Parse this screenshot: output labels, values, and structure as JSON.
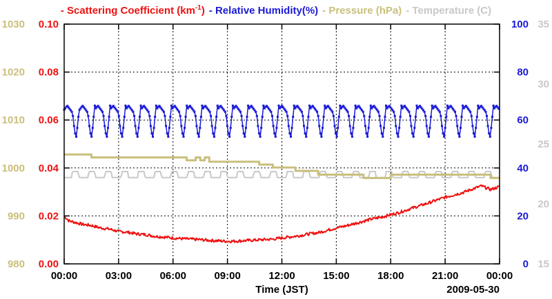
{
  "chart_data": {
    "type": "line",
    "title": "",
    "xlabel": "Time (JST)",
    "date_label": "2009-05-30",
    "x_ticks": [
      "00:00",
      "03:00",
      "06:00",
      "09:00",
      "12:00",
      "15:00",
      "18:00",
      "21:00",
      "00:00"
    ],
    "xlim": [
      0,
      24
    ],
    "legend": [
      {
        "dash": "-",
        "text": "Scattering Coefficient (km",
        "sup": "-1",
        "close": ")",
        "color": "#ee1111"
      },
      {
        "dash": "-",
        "text": "Relative Humidity(%)",
        "sup": "",
        "close": "",
        "color": "#1a1ad6"
      },
      {
        "dash": "-",
        "text": "Pressure (hPa)",
        "sup": "",
        "close": "",
        "color": "#c9bf7c"
      },
      {
        "dash": "-",
        "text": "Temperature (",
        "sup": "",
        "close": "C)",
        "color": "#c8c8c8"
      }
    ],
    "axes": {
      "left_outer": {
        "label": "Pressure (hPa)",
        "range": [
          980,
          1030
        ],
        "ticks": [
          "980",
          "990",
          "1000",
          "1010",
          "1020",
          "1030"
        ],
        "color": "#c9bf7c"
      },
      "left_inner": {
        "label": "Scattering Coefficient (km-1)",
        "range": [
          0,
          0.1
        ],
        "ticks": [
          "0.00",
          "0.02",
          "0.04",
          "0.06",
          "0.08",
          "0.10"
        ],
        "color": "#ee1111"
      },
      "right_inner": {
        "label": "Relative Humidity(%)",
        "range": [
          0,
          100
        ],
        "ticks": [
          "0",
          "20",
          "40",
          "60",
          "80",
          "100"
        ],
        "color": "#1a1ad6"
      },
      "right_outer": {
        "label": "Temperature (C)",
        "range": [
          15,
          35
        ],
        "ticks": [
          "15",
          "20",
          "25",
          "30",
          "35"
        ],
        "color": "#c8c8c8"
      }
    },
    "series": [
      {
        "name": "Scattering Coefficient",
        "axis": "left_inner",
        "color": "#ee1111",
        "x": [
          0,
          0.25,
          0.5,
          1,
          1.5,
          2,
          2.5,
          3,
          3.5,
          4,
          4.5,
          5,
          5.5,
          6,
          6.5,
          7,
          7.5,
          8,
          8.5,
          9,
          9.5,
          10,
          10.5,
          11,
          11.5,
          12,
          12.5,
          13,
          13.5,
          14,
          14.5,
          15,
          15.5,
          16,
          16.5,
          17,
          17.5,
          18,
          18.5,
          19,
          19.5,
          20,
          20.5,
          21,
          21.5,
          22,
          22.5,
          23,
          23.5,
          24
        ],
        "values": [
          0.02,
          0.018,
          0.0175,
          0.0165,
          0.016,
          0.015,
          0.0145,
          0.0135,
          0.0132,
          0.0125,
          0.0122,
          0.0115,
          0.0112,
          0.0108,
          0.0105,
          0.0103,
          0.0101,
          0.0098,
          0.0096,
          0.0094,
          0.0095,
          0.0097,
          0.0099,
          0.0101,
          0.0103,
          0.0108,
          0.0113,
          0.0118,
          0.0125,
          0.013,
          0.014,
          0.015,
          0.0158,
          0.0168,
          0.0178,
          0.0188,
          0.0195,
          0.0205,
          0.0215,
          0.0228,
          0.024,
          0.0252,
          0.0265,
          0.0278,
          0.0288,
          0.0298,
          0.0312,
          0.0325,
          0.031,
          0.0322
        ]
      },
      {
        "name": "Relative Humidity",
        "axis": "right_inner",
        "color": "#1a1ad6",
        "period_hours": 0.845,
        "high": 66,
        "low": 53,
        "x_start": 0,
        "x_end": 24
      },
      {
        "name": "Pressure",
        "axis": "left_outer",
        "color": "#c9bf7c",
        "x": [
          0,
          1.5,
          1.5,
          6.75,
          6.75,
          7.25,
          7.25,
          7.5,
          7.5,
          7.75,
          7.75,
          8.0,
          8.0,
          10.75,
          10.75,
          11.5,
          11.5,
          12.75,
          12.75,
          14.0,
          14.0,
          16.5,
          16.5,
          18.0,
          18.0,
          23.5,
          23.5,
          24
        ],
        "values": [
          1002.8,
          1002.8,
          1002.2,
          1002.2,
          1001.6,
          1001.6,
          1002.2,
          1002.2,
          1001.6,
          1001.6,
          1002.2,
          1002.2,
          1001.3,
          1001.3,
          1000.7,
          1000.7,
          1000.1,
          1000.1,
          999.4,
          999.4,
          998.6,
          998.6,
          997.9,
          997.9,
          998.6,
          998.6,
          997.9,
          997.9
        ]
      },
      {
        "name": "Temperature",
        "axis": "right_outer",
        "color": "#c8c8c8",
        "period_hours": 0.91,
        "high": 22.7,
        "low": 22.2,
        "x_start": 0,
        "x_end": 24
      }
    ]
  }
}
